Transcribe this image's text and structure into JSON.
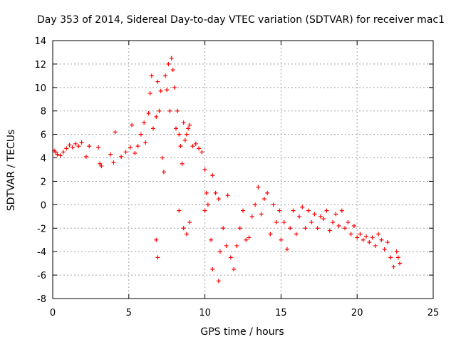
{
  "chart_data": {
    "type": "scatter",
    "title": "Day 353 of 2014, Sidereal Day-to-day VTEC variation (SDTVAR) for receiver mac1",
    "xlabel": "GPS time / hours",
    "ylabel": "SDTVAR / TECUs",
    "xlim": [
      0,
      25
    ],
    "ylim": [
      -8,
      14
    ],
    "xticks": [
      0,
      5,
      10,
      15,
      20,
      25
    ],
    "yticks": [
      -8,
      -6,
      -4,
      -2,
      0,
      2,
      4,
      6,
      8,
      10,
      12,
      14
    ],
    "xtick_labels": [
      "0",
      "5",
      "10",
      "15",
      "20",
      "25"
    ],
    "ytick_labels": [
      "-8",
      "-6",
      "-4",
      "-2",
      "0",
      "2",
      "4",
      "6",
      "8",
      "10",
      "12",
      "14"
    ],
    "grid": true,
    "legend": "none",
    "marker": "+",
    "series": [
      {
        "name": "SDTVAR",
        "color": "#ff0000",
        "points": [
          [
            0.1,
            4.6
          ],
          [
            0.2,
            4.5
          ],
          [
            0.3,
            4.3
          ],
          [
            0.5,
            4.2
          ],
          [
            0.7,
            4.5
          ],
          [
            0.9,
            4.8
          ],
          [
            1.1,
            5.1
          ],
          [
            1.3,
            4.9
          ],
          [
            1.5,
            5.2
          ],
          [
            1.7,
            5.0
          ],
          [
            1.9,
            5.3
          ],
          [
            2.2,
            4.1
          ],
          [
            2.4,
            5.0
          ],
          [
            3.0,
            4.9
          ],
          [
            3.1,
            3.5
          ],
          [
            3.2,
            3.3
          ],
          [
            3.8,
            4.3
          ],
          [
            4.0,
            3.6
          ],
          [
            4.1,
            6.2
          ],
          [
            4.5,
            4.1
          ],
          [
            4.8,
            4.5
          ],
          [
            5.1,
            4.9
          ],
          [
            5.2,
            6.8
          ],
          [
            5.4,
            4.4
          ],
          [
            5.6,
            5.0
          ],
          [
            5.8,
            6.0
          ],
          [
            6.0,
            7.0
          ],
          [
            6.1,
            5.3
          ],
          [
            6.3,
            7.8
          ],
          [
            6.4,
            9.5
          ],
          [
            6.5,
            11.0
          ],
          [
            6.6,
            6.5
          ],
          [
            6.8,
            7.5
          ],
          [
            6.9,
            10.5
          ],
          [
            7.0,
            8.0
          ],
          [
            7.1,
            9.7
          ],
          [
            7.2,
            4.0
          ],
          [
            7.3,
            2.8
          ],
          [
            7.4,
            11.0
          ],
          [
            7.5,
            9.8
          ],
          [
            7.6,
            12.0
          ],
          [
            7.7,
            8.0
          ],
          [
            7.8,
            12.5
          ],
          [
            7.9,
            11.5
          ],
          [
            8.0,
            10.0
          ],
          [
            8.1,
            6.5
          ],
          [
            8.2,
            8.0
          ],
          [
            8.3,
            6.0
          ],
          [
            8.4,
            5.0
          ],
          [
            8.5,
            3.5
          ],
          [
            8.6,
            7.0
          ],
          [
            8.7,
            5.5
          ],
          [
            8.8,
            6.0
          ],
          [
            8.9,
            6.5
          ],
          [
            9.0,
            6.8
          ],
          [
            9.2,
            5.0
          ],
          [
            9.4,
            5.2
          ],
          [
            9.6,
            4.8
          ],
          [
            9.8,
            4.5
          ],
          [
            10.0,
            3.0
          ],
          [
            10.1,
            1.0
          ],
          [
            10.2,
            0.0
          ],
          [
            10.5,
            2.5
          ],
          [
            10.7,
            1.0
          ],
          [
            10.9,
            0.5
          ],
          [
            6.8,
            -3.0
          ],
          [
            6.9,
            -4.5
          ],
          [
            8.3,
            -0.5
          ],
          [
            8.6,
            -2.0
          ],
          [
            8.8,
            -2.5
          ],
          [
            9.0,
            -1.5
          ],
          [
            10.0,
            -0.5
          ],
          [
            10.4,
            -3.0
          ],
          [
            10.5,
            -5.5
          ],
          [
            10.9,
            -6.5
          ],
          [
            11.0,
            -4.0
          ],
          [
            11.2,
            -2.0
          ],
          [
            11.4,
            -3.5
          ],
          [
            11.5,
            0.8
          ],
          [
            11.7,
            -4.5
          ],
          [
            11.9,
            -5.5
          ],
          [
            12.1,
            -3.5
          ],
          [
            12.3,
            -2.0
          ],
          [
            12.5,
            -0.5
          ],
          [
            12.7,
            -3.0
          ],
          [
            12.9,
            -2.8
          ],
          [
            13.1,
            -1.0
          ],
          [
            13.3,
            0.0
          ],
          [
            13.5,
            1.5
          ],
          [
            13.7,
            -0.8
          ],
          [
            13.9,
            0.5
          ],
          [
            14.1,
            1.0
          ],
          [
            14.3,
            -2.5
          ],
          [
            14.5,
            0.0
          ],
          [
            14.7,
            -1.5
          ],
          [
            14.9,
            -0.5
          ],
          [
            15.0,
            -3.0
          ],
          [
            15.2,
            -1.5
          ],
          [
            15.4,
            -3.8
          ],
          [
            15.6,
            -2.0
          ],
          [
            15.8,
            -0.5
          ],
          [
            16.0,
            -2.5
          ],
          [
            16.2,
            -1.0
          ],
          [
            16.4,
            -0.2
          ],
          [
            16.6,
            -2.0
          ],
          [
            16.8,
            -0.5
          ],
          [
            17.0,
            -1.5
          ],
          [
            17.2,
            -0.8
          ],
          [
            17.4,
            -2.0
          ],
          [
            17.6,
            -1.0
          ],
          [
            17.8,
            -1.2
          ],
          [
            18.0,
            -0.5
          ],
          [
            18.2,
            -2.2
          ],
          [
            18.4,
            -1.5
          ],
          [
            18.6,
            -0.8
          ],
          [
            18.8,
            -1.8
          ],
          [
            19.0,
            -0.5
          ],
          [
            19.2,
            -2.0
          ],
          [
            19.4,
            -1.5
          ],
          [
            19.6,
            -2.5
          ],
          [
            19.8,
            -1.8
          ],
          [
            20.0,
            -2.8
          ],
          [
            20.2,
            -2.5
          ],
          [
            20.4,
            -3.0
          ],
          [
            20.6,
            -2.7
          ],
          [
            20.8,
            -3.2
          ],
          [
            21.0,
            -2.8
          ],
          [
            21.2,
            -3.5
          ],
          [
            21.4,
            -2.5
          ],
          [
            21.6,
            -3.0
          ],
          [
            21.8,
            -3.8
          ],
          [
            22.0,
            -3.2
          ],
          [
            22.2,
            -4.5
          ],
          [
            22.4,
            -5.3
          ],
          [
            22.6,
            -4.0
          ],
          [
            22.8,
            -5.0
          ],
          [
            22.7,
            -4.5
          ]
        ]
      }
    ]
  }
}
